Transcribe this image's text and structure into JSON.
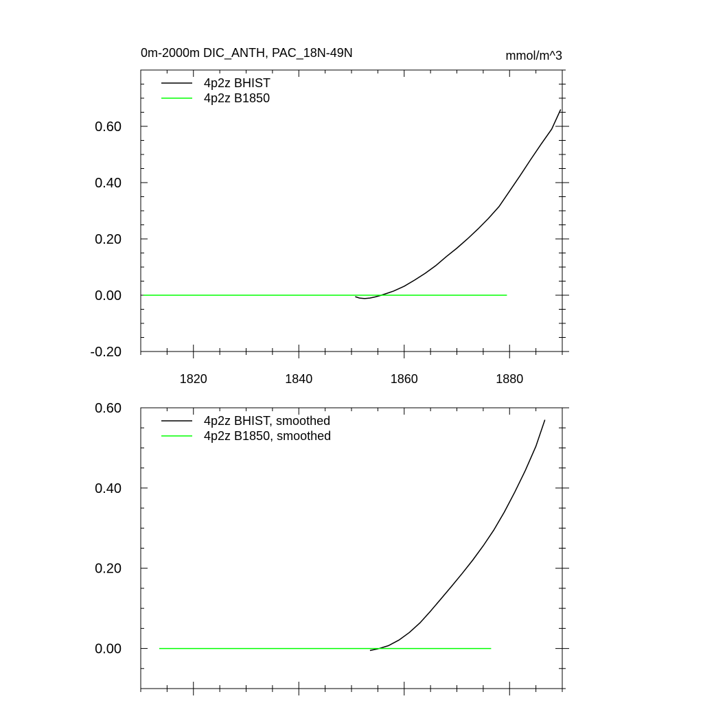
{
  "chart_data": [
    {
      "type": "line",
      "title": "0m-2000m DIC_ANTH, PAC_18N-49N",
      "units": "mmol/m^3",
      "xlim": [
        1810,
        1890
      ],
      "ylim": [
        -0.2,
        0.8
      ],
      "xticks": [
        1820,
        1840,
        1860,
        1880
      ],
      "xticklabels": [
        "1820",
        "1840",
        "1860",
        "1880"
      ],
      "yticks": [
        -0.2,
        0.0,
        0.2,
        0.4,
        0.6
      ],
      "yticklabels": [
        "-0.20",
        "0.00",
        "0.20",
        "0.40",
        "0.60"
      ],
      "legend_position": "top-left",
      "series": [
        {
          "name": "4p2z BHIST",
          "color": "#000000",
          "x": [
            1850.7,
            1851.5,
            1852.5,
            1853.5,
            1854.5,
            1855.5,
            1856.5,
            1858,
            1860,
            1862,
            1864,
            1866,
            1868,
            1870,
            1872,
            1874,
            1876,
            1878,
            1880,
            1882,
            1884,
            1886,
            1888,
            1889.7
          ],
          "y": [
            -0.005,
            -0.01,
            -0.012,
            -0.01,
            -0.006,
            -0.001,
            0.005,
            0.015,
            0.032,
            0.054,
            0.078,
            0.105,
            0.137,
            0.167,
            0.2,
            0.235,
            0.273,
            0.315,
            0.37,
            0.425,
            0.482,
            0.537,
            0.59,
            0.66
          ]
        },
        {
          "name": "4p2z B1850",
          "color": "#00ff00",
          "x": [
            1810.5,
            1879.5
          ],
          "y": [
            0.0,
            0.0
          ]
        }
      ]
    },
    {
      "type": "line",
      "xlim": [
        1810,
        1890
      ],
      "ylim": [
        -0.1,
        0.6
      ],
      "xticks": [
        1820,
        1840,
        1860,
        1880
      ],
      "yticks": [
        0.0,
        0.2,
        0.4,
        0.6
      ],
      "yticklabels": [
        "0.00",
        "0.20",
        "0.40",
        "0.60"
      ],
      "legend_position": "top-left",
      "series": [
        {
          "name": "4p2z BHIST, smoothed",
          "color": "#000000",
          "x": [
            1853.5,
            1855,
            1857,
            1859,
            1861,
            1863,
            1865,
            1867,
            1869,
            1871,
            1873,
            1875,
            1877,
            1879,
            1881,
            1883,
            1885,
            1886.7
          ],
          "y": [
            -0.005,
            -0.001,
            0.007,
            0.021,
            0.04,
            0.064,
            0.093,
            0.124,
            0.155,
            0.187,
            0.22,
            0.256,
            0.295,
            0.34,
            0.39,
            0.444,
            0.504,
            0.57
          ]
        },
        {
          "name": "4p2z B1850, smoothed",
          "color": "#00ff00",
          "x": [
            1813.5,
            1876.5
          ],
          "y": [
            0.0,
            0.0
          ]
        }
      ]
    }
  ]
}
